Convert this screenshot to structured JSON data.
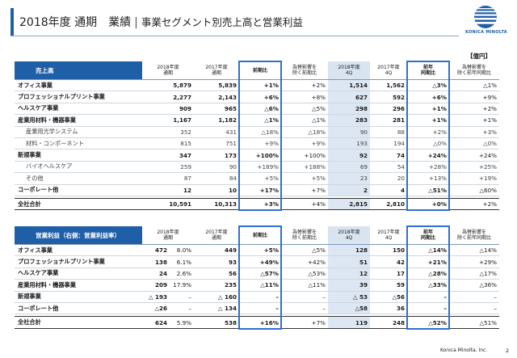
{
  "header": {
    "title": "2018年度 通期　業績",
    "subtitle": "事業セグメント別売上高と営業利益"
  },
  "logo": {
    "text": "KONICA MINOLTA"
  },
  "unit": "【億円】",
  "sales": {
    "headers": {
      "label": "売上高",
      "fy2018": "2018年度\n通期",
      "fy2017": "2017年度\n通期",
      "yoy": "前期比",
      "fx": "為替影響を\n除く前期比",
      "q4_2018": "2018年度\n4Q",
      "q4_2017": "2017年度\n4Q",
      "q4_yoy": "前年\n同期比",
      "q4_fx": "為替影響を\n除く前年同期比"
    },
    "rows": [
      {
        "name": "オフィス事業",
        "a": "5,879",
        "b": "5,839",
        "c": "+1%",
        "d": "+2%",
        "e": "1,514",
        "f": "1,562",
        "g": "△3%",
        "h": "△1%",
        "type": "main"
      },
      {
        "name": "プロフェッショナルプリント事業",
        "a": "2,277",
        "b": "2,143",
        "c": "+6%",
        "d": "+8%",
        "e": "627",
        "f": "592",
        "g": "+6%",
        "h": "+9%",
        "type": "main"
      },
      {
        "name": "ヘルスケア事業",
        "a": "909",
        "b": "965",
        "c": "△6%",
        "d": "△5%",
        "e": "298",
        "f": "296",
        "g": "+1%",
        "h": "+2%",
        "type": "main"
      },
      {
        "name": "産業用材料・機器事業",
        "a": "1,167",
        "b": "1,182",
        "c": "△1%",
        "d": "△1%",
        "e": "283",
        "f": "281",
        "g": "+1%",
        "h": "+1%",
        "type": "main"
      },
      {
        "name": "産業用光学システム",
        "a": "352",
        "b": "431",
        "c": "△18%",
        "d": "△18%",
        "e": "90",
        "f": "88",
        "g": "+2%",
        "h": "+3%",
        "type": "sub"
      },
      {
        "name": "材料・コンポーネント",
        "a": "815",
        "b": "751",
        "c": "+9%",
        "d": "+9%",
        "e": "193",
        "f": "194",
        "g": "△0%",
        "h": "△0%",
        "type": "sub"
      },
      {
        "name": "新規事業",
        "a": "347",
        "b": "173",
        "c": "+100%",
        "d": "+100%",
        "e": "92",
        "f": "74",
        "g": "+24%",
        "h": "+24%",
        "type": "main",
        "sect": true
      },
      {
        "name": "バイオヘルスケア",
        "a": "259",
        "b": "90",
        "c": "+189%",
        "d": "+188%",
        "e": "69",
        "f": "54",
        "g": "+28%",
        "h": "+25%",
        "type": "sub"
      },
      {
        "name": "その他",
        "a": "87",
        "b": "84",
        "c": "+5%",
        "d": "+5%",
        "e": "23",
        "f": "20",
        "g": "+13%",
        "h": "+19%",
        "type": "sub"
      },
      {
        "name": "コーポレート他",
        "a": "12",
        "b": "10",
        "c": "+17%",
        "d": "+7%",
        "e": "2",
        "f": "4",
        "g": "△51%",
        "h": "△60%",
        "type": "main"
      },
      {
        "name": "全社合計",
        "a": "10,591",
        "b": "10,313",
        "c": "+3%",
        "d": "+4%",
        "e": "2,815",
        "f": "2,810",
        "g": "+0%",
        "h": "+2%",
        "type": "total"
      }
    ]
  },
  "profit": {
    "headers": {
      "label": "営業利益（右側：営業利益率）",
      "fy2018": "2018年度\n通期",
      "fy2017": "2017年度\n通期",
      "yoy": "前期比",
      "fx": "為替影響を\n除く前期比",
      "q4_2018": "2018年度\n4Q",
      "q4_2017": "2017年度\n4Q",
      "q4_yoy": "前年\n同期比",
      "q4_fx": "為替影響を\n除く前年同期比"
    },
    "rows": [
      {
        "name": "オフィス事業",
        "a": "472",
        "a2": "8.0%",
        "b": "449",
        "c": "+5%",
        "d": "△5%",
        "e": "128",
        "f": "150",
        "g": "△14%",
        "h": "△14%",
        "type": "main"
      },
      {
        "name": "プロフェッショナルプリント事業",
        "a": "138",
        "a2": "6.1%",
        "b": "93",
        "c": "+49%",
        "d": "+42%",
        "e": "51",
        "f": "42",
        "g": "+21%",
        "h": "+29%",
        "type": "main"
      },
      {
        "name": "ヘルスケア事業",
        "a": "24",
        "a2": "2.6%",
        "b": "56",
        "c": "△57%",
        "d": "△53%",
        "e": "12",
        "f": "17",
        "g": "△28%",
        "h": "△17%",
        "type": "main"
      },
      {
        "name": "産業用材料・機器事業",
        "a": "209",
        "a2": "17.9%",
        "b": "235",
        "c": "△11%",
        "d": "△11%",
        "e": "39",
        "f": "59",
        "g": "△33%",
        "h": "△36%",
        "type": "main"
      },
      {
        "name": "新規事業",
        "a": "△ 193",
        "a2": "–",
        "b": "△ 160",
        "c": "–",
        "d": "–",
        "e": "△ 53",
        "f": "△56",
        "g": "–",
        "h": "–",
        "type": "main",
        "sect": true
      },
      {
        "name": "コーポレート他",
        "a": "△26",
        "a2": "–",
        "b": "△ 134",
        "c": "–",
        "d": "–",
        "e": "△58",
        "f": "36",
        "g": "–",
        "h": "–",
        "type": "main"
      },
      {
        "name": "全社合計",
        "a": "624",
        "a2": "5.9%",
        "b": "538",
        "c": "+16%",
        "d": "+7%",
        "e": "119",
        "f": "248",
        "g": "△52%",
        "h": "△51%",
        "type": "total"
      }
    ]
  },
  "footer": {
    "company": "Konica Minolta, Inc.",
    "page": "2"
  }
}
